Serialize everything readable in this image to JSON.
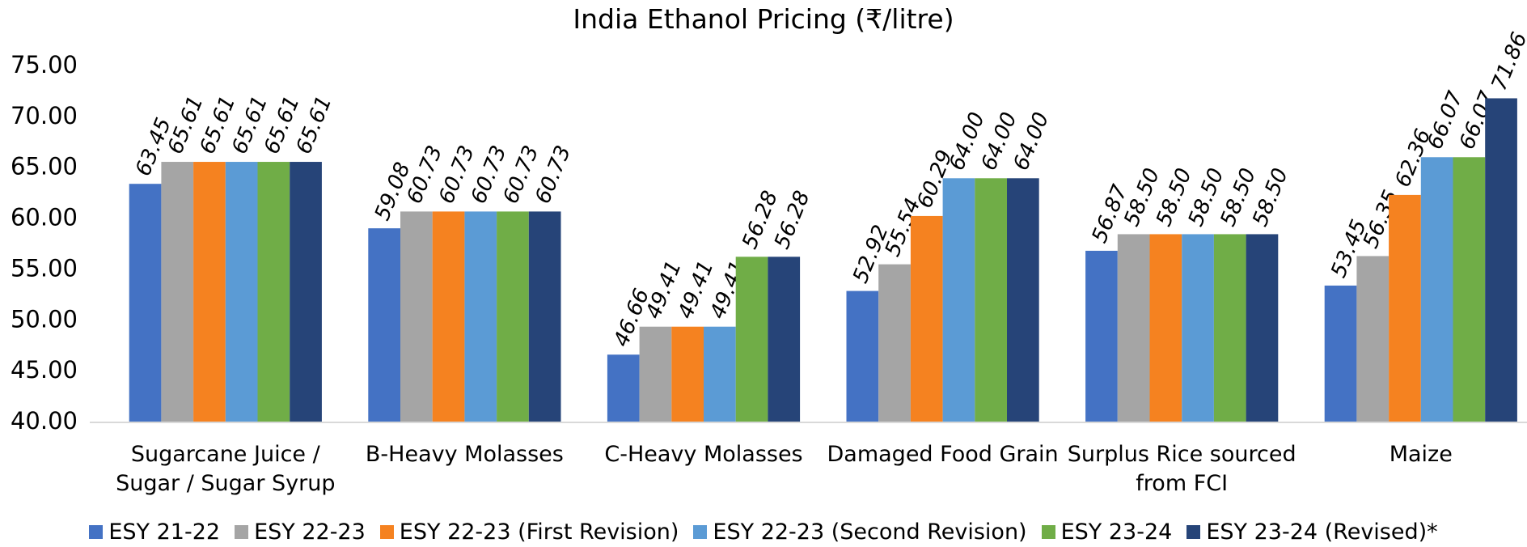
{
  "chart_data": {
    "type": "bar",
    "title": "India Ethanol Pricing (₹/litre)",
    "categories": [
      "Sugarcane Juice / Sugar / Sugar Syrup",
      "B-Heavy Molasses",
      "C-Heavy Molasses",
      "Damaged Food Grain",
      "Surplus Rice sourced from FCI",
      "Maize"
    ],
    "series": [
      {
        "name": "ESY 21-22",
        "color": "#4472c4",
        "values": [
          63.45,
          59.08,
          46.66,
          52.92,
          56.87,
          53.45
        ],
        "value_labels": [
          "63.45",
          "59.08",
          "46.66",
          "52.92",
          "56.87",
          "53.45"
        ]
      },
      {
        "name": "ESY 22-23",
        "color": "#a5a5a5",
        "values": [
          65.61,
          60.73,
          49.41,
          55.54,
          58.5,
          56.35
        ],
        "value_labels": [
          "65.61",
          "60.73",
          "49.41",
          "55.54",
          "58.50",
          "56.35"
        ]
      },
      {
        "name": "ESY 22-23 (First Revision)",
        "color": "#f58220",
        "values": [
          65.61,
          60.73,
          49.41,
          60.29,
          58.5,
          62.36
        ],
        "value_labels": [
          "65.61",
          "60.73",
          "49.41",
          "60.29",
          "58.50",
          "62.36"
        ]
      },
      {
        "name": "ESY 22-23 (Second Revision)",
        "color": "#5b9bd5",
        "values": [
          65.61,
          60.73,
          49.41,
          64,
          58.5,
          66.07
        ],
        "value_labels": [
          "65.61",
          "60.73",
          "49.41",
          "64.00",
          "58.50",
          "66.07"
        ]
      },
      {
        "name": "ESY 23-24",
        "color": "#70ad47",
        "values": [
          65.61,
          60.73,
          56.28,
          64,
          58.5,
          66.07
        ],
        "value_labels": [
          "65.61",
          "60.73",
          "56.28",
          "64.00",
          "58.50",
          "66.07"
        ]
      },
      {
        "name": "ESY 23-24 (Revised)*",
        "color": "#264478",
        "values": [
          65.61,
          60.73,
          56.28,
          64,
          58.5,
          71.86
        ],
        "value_labels": [
          "65.61",
          "60.73",
          "56.28",
          "64.00",
          "58.50",
          "71.86"
        ]
      }
    ],
    "ylim": [
      40,
      75
    ],
    "yticks": [
      {
        "value": 40,
        "label": "40.00"
      },
      {
        "value": 45,
        "label": "45.00"
      },
      {
        "value": 50,
        "label": "50.00"
      },
      {
        "value": 55,
        "label": "55.00"
      },
      {
        "value": 60,
        "label": "60.00"
      },
      {
        "value": 65,
        "label": "65.00"
      },
      {
        "value": 70,
        "label": "70.00"
      },
      {
        "value": 75,
        "label": "75.00"
      }
    ],
    "grid": false,
    "legend": "bottom"
  }
}
